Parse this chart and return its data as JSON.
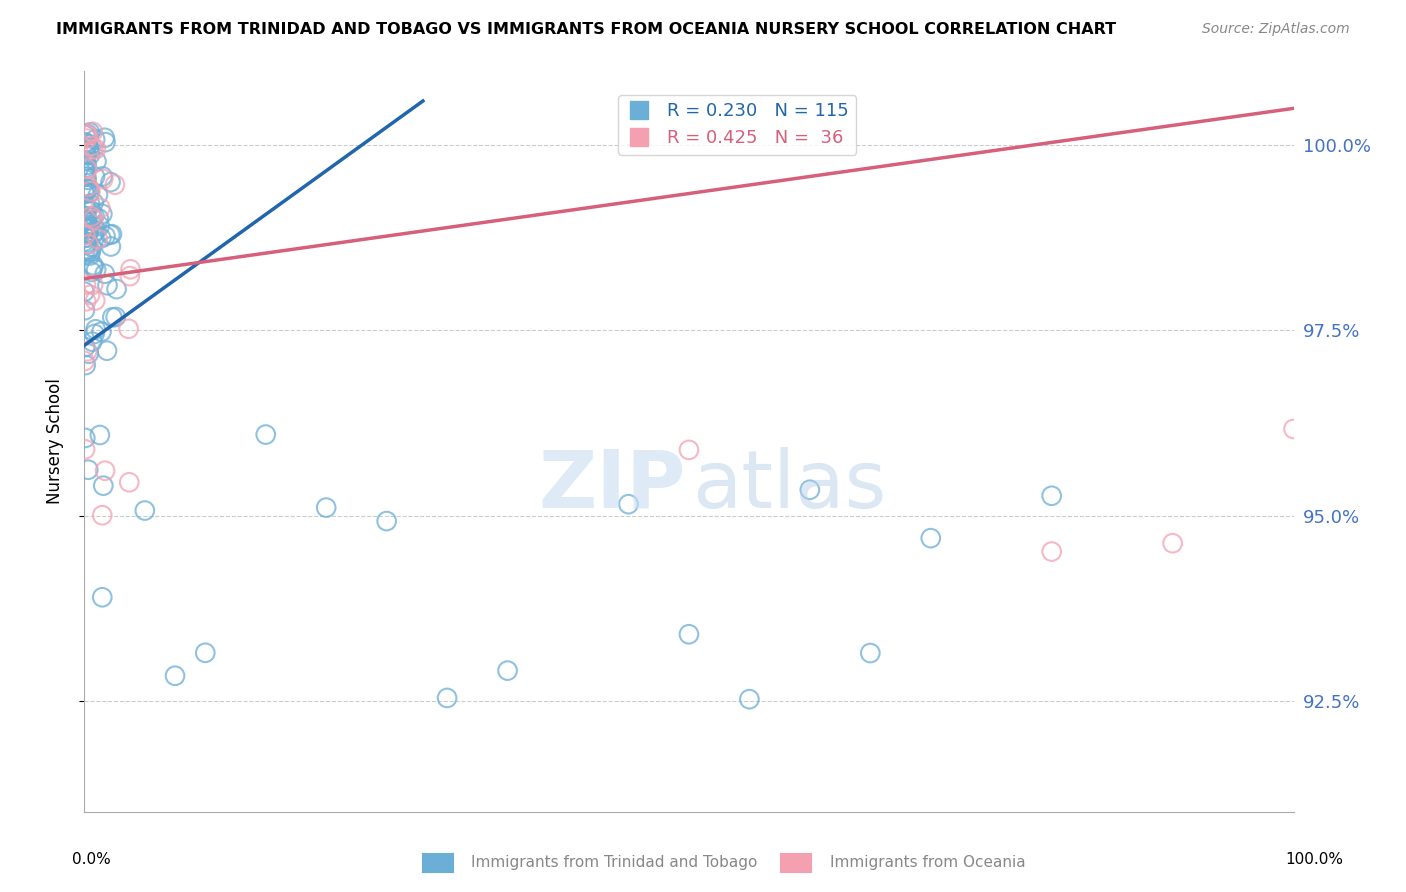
{
  "title": "IMMIGRANTS FROM TRINIDAD AND TOBAGO VS IMMIGRANTS FROM OCEANIA NURSERY SCHOOL CORRELATION CHART",
  "source": "Source: ZipAtlas.com",
  "ylabel": "Nursery School",
  "yticks": [
    92.5,
    95.0,
    97.5,
    100.0
  ],
  "ytick_labels": [
    "92.5%",
    "95.0%",
    "97.5%",
    "100.0%"
  ],
  "xlim": [
    0.0,
    100.0
  ],
  "ylim": [
    91.0,
    101.0
  ],
  "blue_color": "#6baed6",
  "pink_color": "#f4a0b0",
  "blue_line_color": "#2166ac",
  "pink_line_color": "#d6607a",
  "blue_r": "0.230",
  "blue_n": "115",
  "pink_r": "0.425",
  "pink_n": "36",
  "legend_label_blue": "R = 0.230   N = 115",
  "legend_label_pink": "R = 0.425   N =  36",
  "bottom_label_blue": "Immigrants from Trinidad and Tobago",
  "bottom_label_pink": "Immigrants from Oceania",
  "watermark_left": "ZIP",
  "watermark_right": "atlas",
  "blue_line_x": [
    0,
    28
  ],
  "blue_line_y": [
    97.3,
    100.6
  ],
  "pink_line_x": [
    0,
    100
  ],
  "pink_line_y": [
    98.2,
    100.5
  ]
}
